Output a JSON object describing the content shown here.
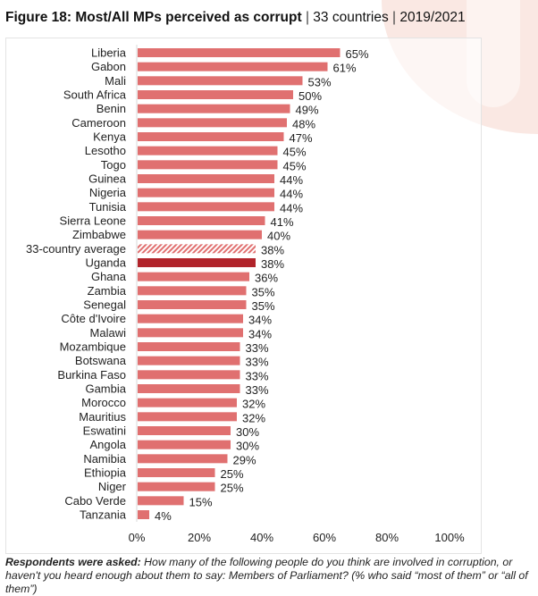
{
  "title": {
    "bold": "Figure 18: Most/All MPs perceived as corrupt",
    "countries": "33 countries",
    "years": "2019/2021",
    "separator": "|"
  },
  "chart_data": {
    "type": "bar",
    "orientation": "horizontal",
    "categories": [
      "Liberia",
      "Gabon",
      "Mali",
      "South Africa",
      "Benin",
      "Cameroon",
      "Kenya",
      "Lesotho",
      "Togo",
      "Guinea",
      "Nigeria",
      "Tunisia",
      "Sierra Leone",
      "Zimbabwe",
      "33-country average",
      "Uganda",
      "Ghana",
      "Zambia",
      "Senegal",
      "Côte d'Ivoire",
      "Malawi",
      "Mozambique",
      "Botswana",
      "Burkina Faso",
      "Gambia",
      "Morocco",
      "Mauritius",
      "Eswatini",
      "Angola",
      "Namibia",
      "Ethiopia",
      "Niger",
      "Cabo Verde",
      "Tanzania"
    ],
    "values": [
      65,
      61,
      53,
      50,
      49,
      48,
      47,
      45,
      45,
      44,
      44,
      44,
      41,
      40,
      38,
      38,
      36,
      35,
      35,
      34,
      34,
      33,
      33,
      33,
      33,
      32,
      32,
      30,
      30,
      29,
      25,
      25,
      15,
      4
    ],
    "highlight": {
      "average": "33-country average",
      "focus": "Uganda"
    },
    "xlim": [
      0,
      100
    ],
    "xticks": [
      0,
      20,
      40,
      60,
      80,
      100
    ],
    "xtick_labels": [
      "0%",
      "20%",
      "40%",
      "60%",
      "80%",
      "100%"
    ],
    "value_suffix": "%",
    "colors": {
      "bar": "#e07070",
      "focus": "#b1232a",
      "average_hatch": "#e07070"
    },
    "grid": false
  },
  "note": {
    "bold": "Respondents were asked:",
    "text": " How many of the following people do you think are involved in corruption, or haven't you heard enough about them to say: Members of Parliament? (% who said “most of them” or “all of them”)"
  }
}
